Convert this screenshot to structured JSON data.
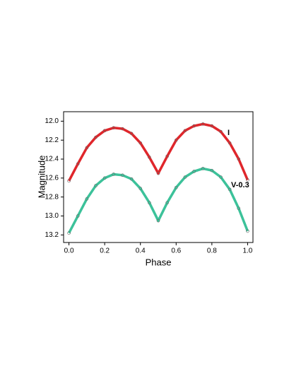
{
  "chart_data": {
    "type": "line",
    "x_label": "Phase",
    "y_label": "Magnitude",
    "x": [
      0.0,
      0.05,
      0.1,
      0.15,
      0.2,
      0.25,
      0.3,
      0.35,
      0.4,
      0.45,
      0.5,
      0.55,
      0.6,
      0.65,
      0.7,
      0.75,
      0.8,
      0.85,
      0.9,
      0.95,
      1.0
    ],
    "series": [
      {
        "name": "I",
        "color": "#e0262b",
        "values": [
          12.63,
          12.45,
          12.28,
          12.17,
          12.1,
          12.07,
          12.08,
          12.13,
          12.23,
          12.38,
          12.55,
          12.37,
          12.2,
          12.1,
          12.05,
          12.03,
          12.05,
          12.11,
          12.23,
          12.4,
          12.62
        ]
      },
      {
        "name": "V-0.3",
        "color": "#3cc29a",
        "values": [
          13.18,
          13.0,
          12.82,
          12.68,
          12.6,
          12.56,
          12.57,
          12.61,
          12.71,
          12.86,
          13.05,
          12.86,
          12.7,
          12.59,
          12.53,
          12.5,
          12.52,
          12.59,
          12.72,
          12.92,
          13.16
        ]
      }
    ],
    "xlim": [
      -0.03,
      1.03
    ],
    "ylim": [
      13.28,
      11.9
    ],
    "xticks": [
      {
        "value": 0,
        "label": "0.0"
      },
      0.2,
      0.4,
      0.6,
      0.8,
      {
        "value": 1,
        "label": "1.0"
      }
    ],
    "yticks": [
      {
        "value": 12,
        "label": "12.0"
      },
      12.2,
      12.4,
      12.6,
      12.8,
      {
        "value": 13,
        "label": "13.0"
      },
      13.2
    ],
    "grid": false
  }
}
